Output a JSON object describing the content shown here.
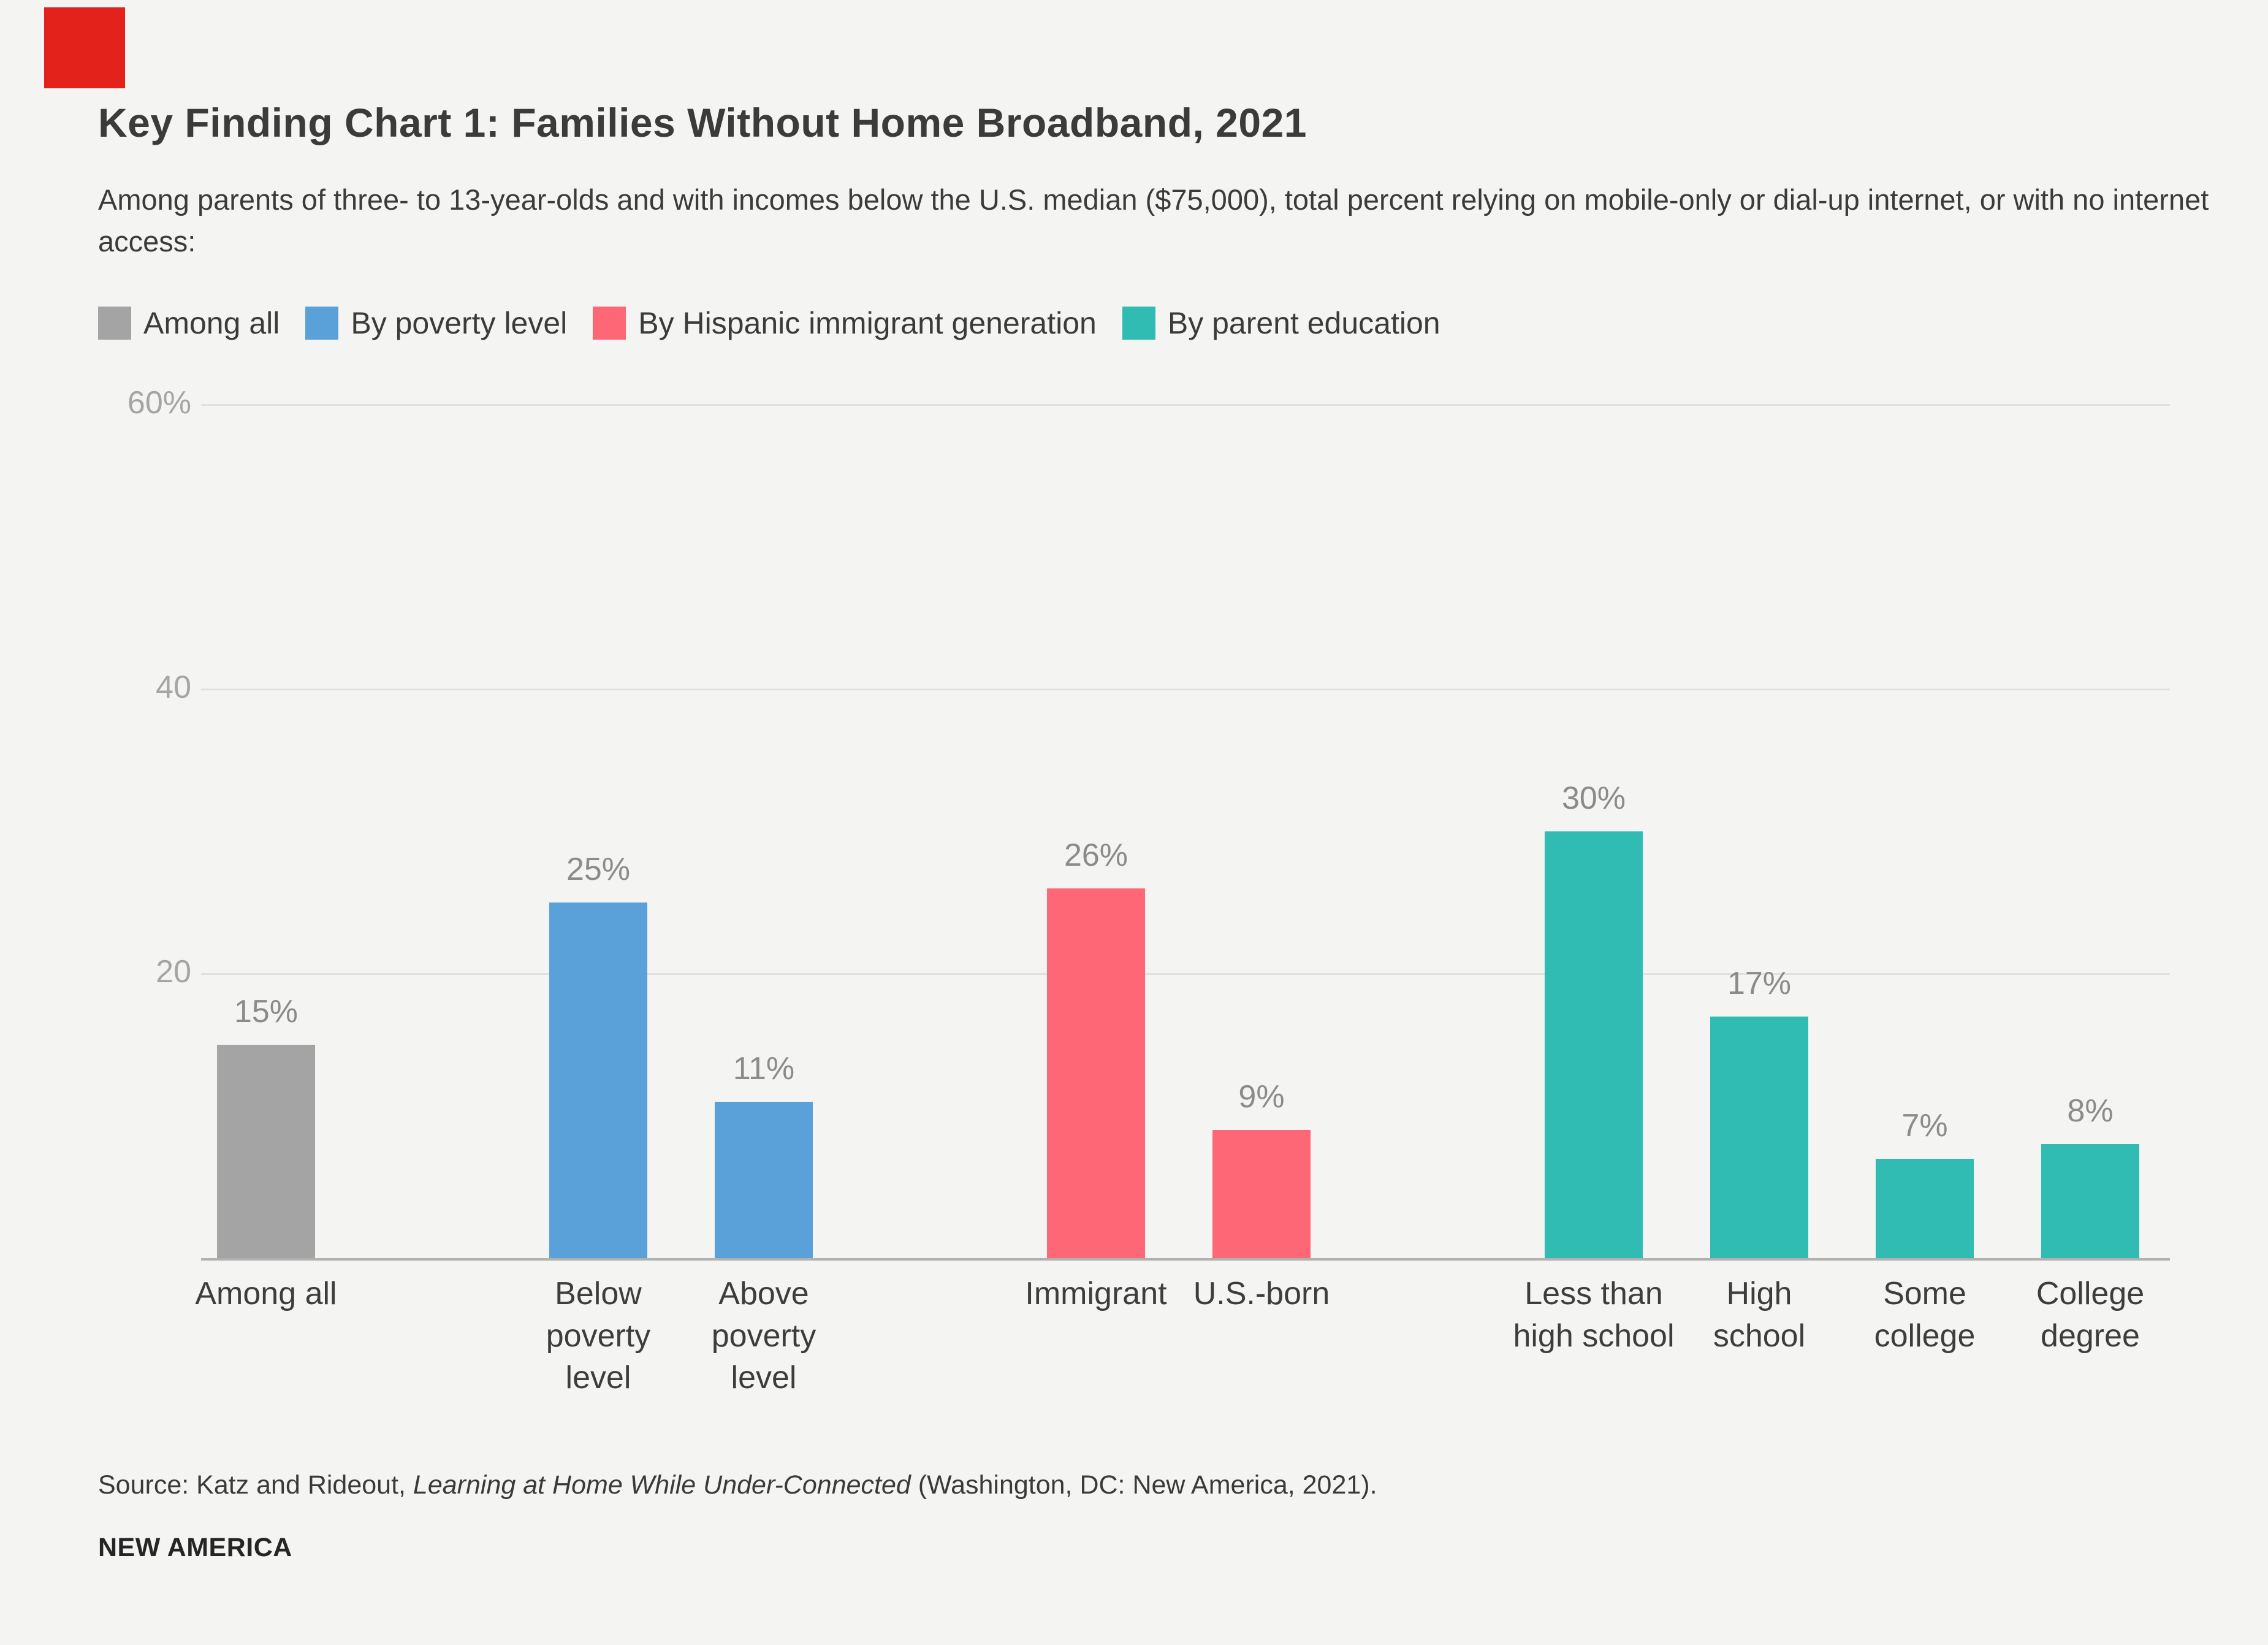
{
  "page": {
    "background_color": "#f4f4f2",
    "logo_mark_color": "#e3221b"
  },
  "header": {
    "title": "Key Finding Chart 1: Families Without Home Broadband, 2021",
    "subtitle": "Among parents of three- to 13-year-olds and with incomes below the U.S. median ($75,000), total percent relying on mobile-only or dial-up internet, or with no internet access:"
  },
  "legend": {
    "position": "top",
    "items": [
      {
        "label": "Among all",
        "color": "#a4a4a4"
      },
      {
        "label": "By poverty level",
        "color": "#5ba1d9"
      },
      {
        "label": "By Hispanic immigrant generation",
        "color": "#fd6776"
      },
      {
        "label": "By parent education",
        "color": "#30bcb3"
      }
    ]
  },
  "chart_data": {
    "type": "bar",
    "title": "Key Finding Chart 1: Families Without Home Broadband, 2021",
    "xlabel": "",
    "ylabel": "",
    "ylim": [
      0,
      60
    ],
    "grid": true,
    "legend_position": "top",
    "yticks": [
      {
        "value": 60,
        "label": "60%"
      },
      {
        "value": 40,
        "label": "40"
      },
      {
        "value": 20,
        "label": "20"
      }
    ],
    "groups": [
      {
        "name": "Among all",
        "color": "#a4a4a4",
        "bars": [
          {
            "category": "Among all",
            "value": 15,
            "value_label": "15%"
          }
        ]
      },
      {
        "name": "By poverty level",
        "color": "#5ba1d9",
        "bars": [
          {
            "category": "Below\npoverty\nlevel",
            "value": 25,
            "value_label": "25%"
          },
          {
            "category": "Above\npoverty\nlevel",
            "value": 11,
            "value_label": "11%"
          }
        ]
      },
      {
        "name": "By Hispanic immigrant generation",
        "color": "#fd6776",
        "bars": [
          {
            "category": "Immigrant",
            "value": 26,
            "value_label": "26%"
          },
          {
            "category": "U.S.-born",
            "value": 9,
            "value_label": "9%"
          }
        ]
      },
      {
        "name": "By parent education",
        "color": "#30bcb3",
        "bars": [
          {
            "category": "Less than\nhigh school",
            "value": 30,
            "value_label": "30%"
          },
          {
            "category": "High\nschool",
            "value": 17,
            "value_label": "17%"
          },
          {
            "category": "Some\ncollege",
            "value": 7,
            "value_label": "7%"
          },
          {
            "category": "College\ndegree",
            "value": 8,
            "value_label": "8%"
          }
        ]
      }
    ]
  },
  "footer": {
    "source_prefix": "Source: Katz and Rideout, ",
    "source_italic": "Learning at Home While Under-Connected",
    "source_suffix": " (Washington, DC: New America, 2021).",
    "brand": "NEW AMERICA"
  }
}
